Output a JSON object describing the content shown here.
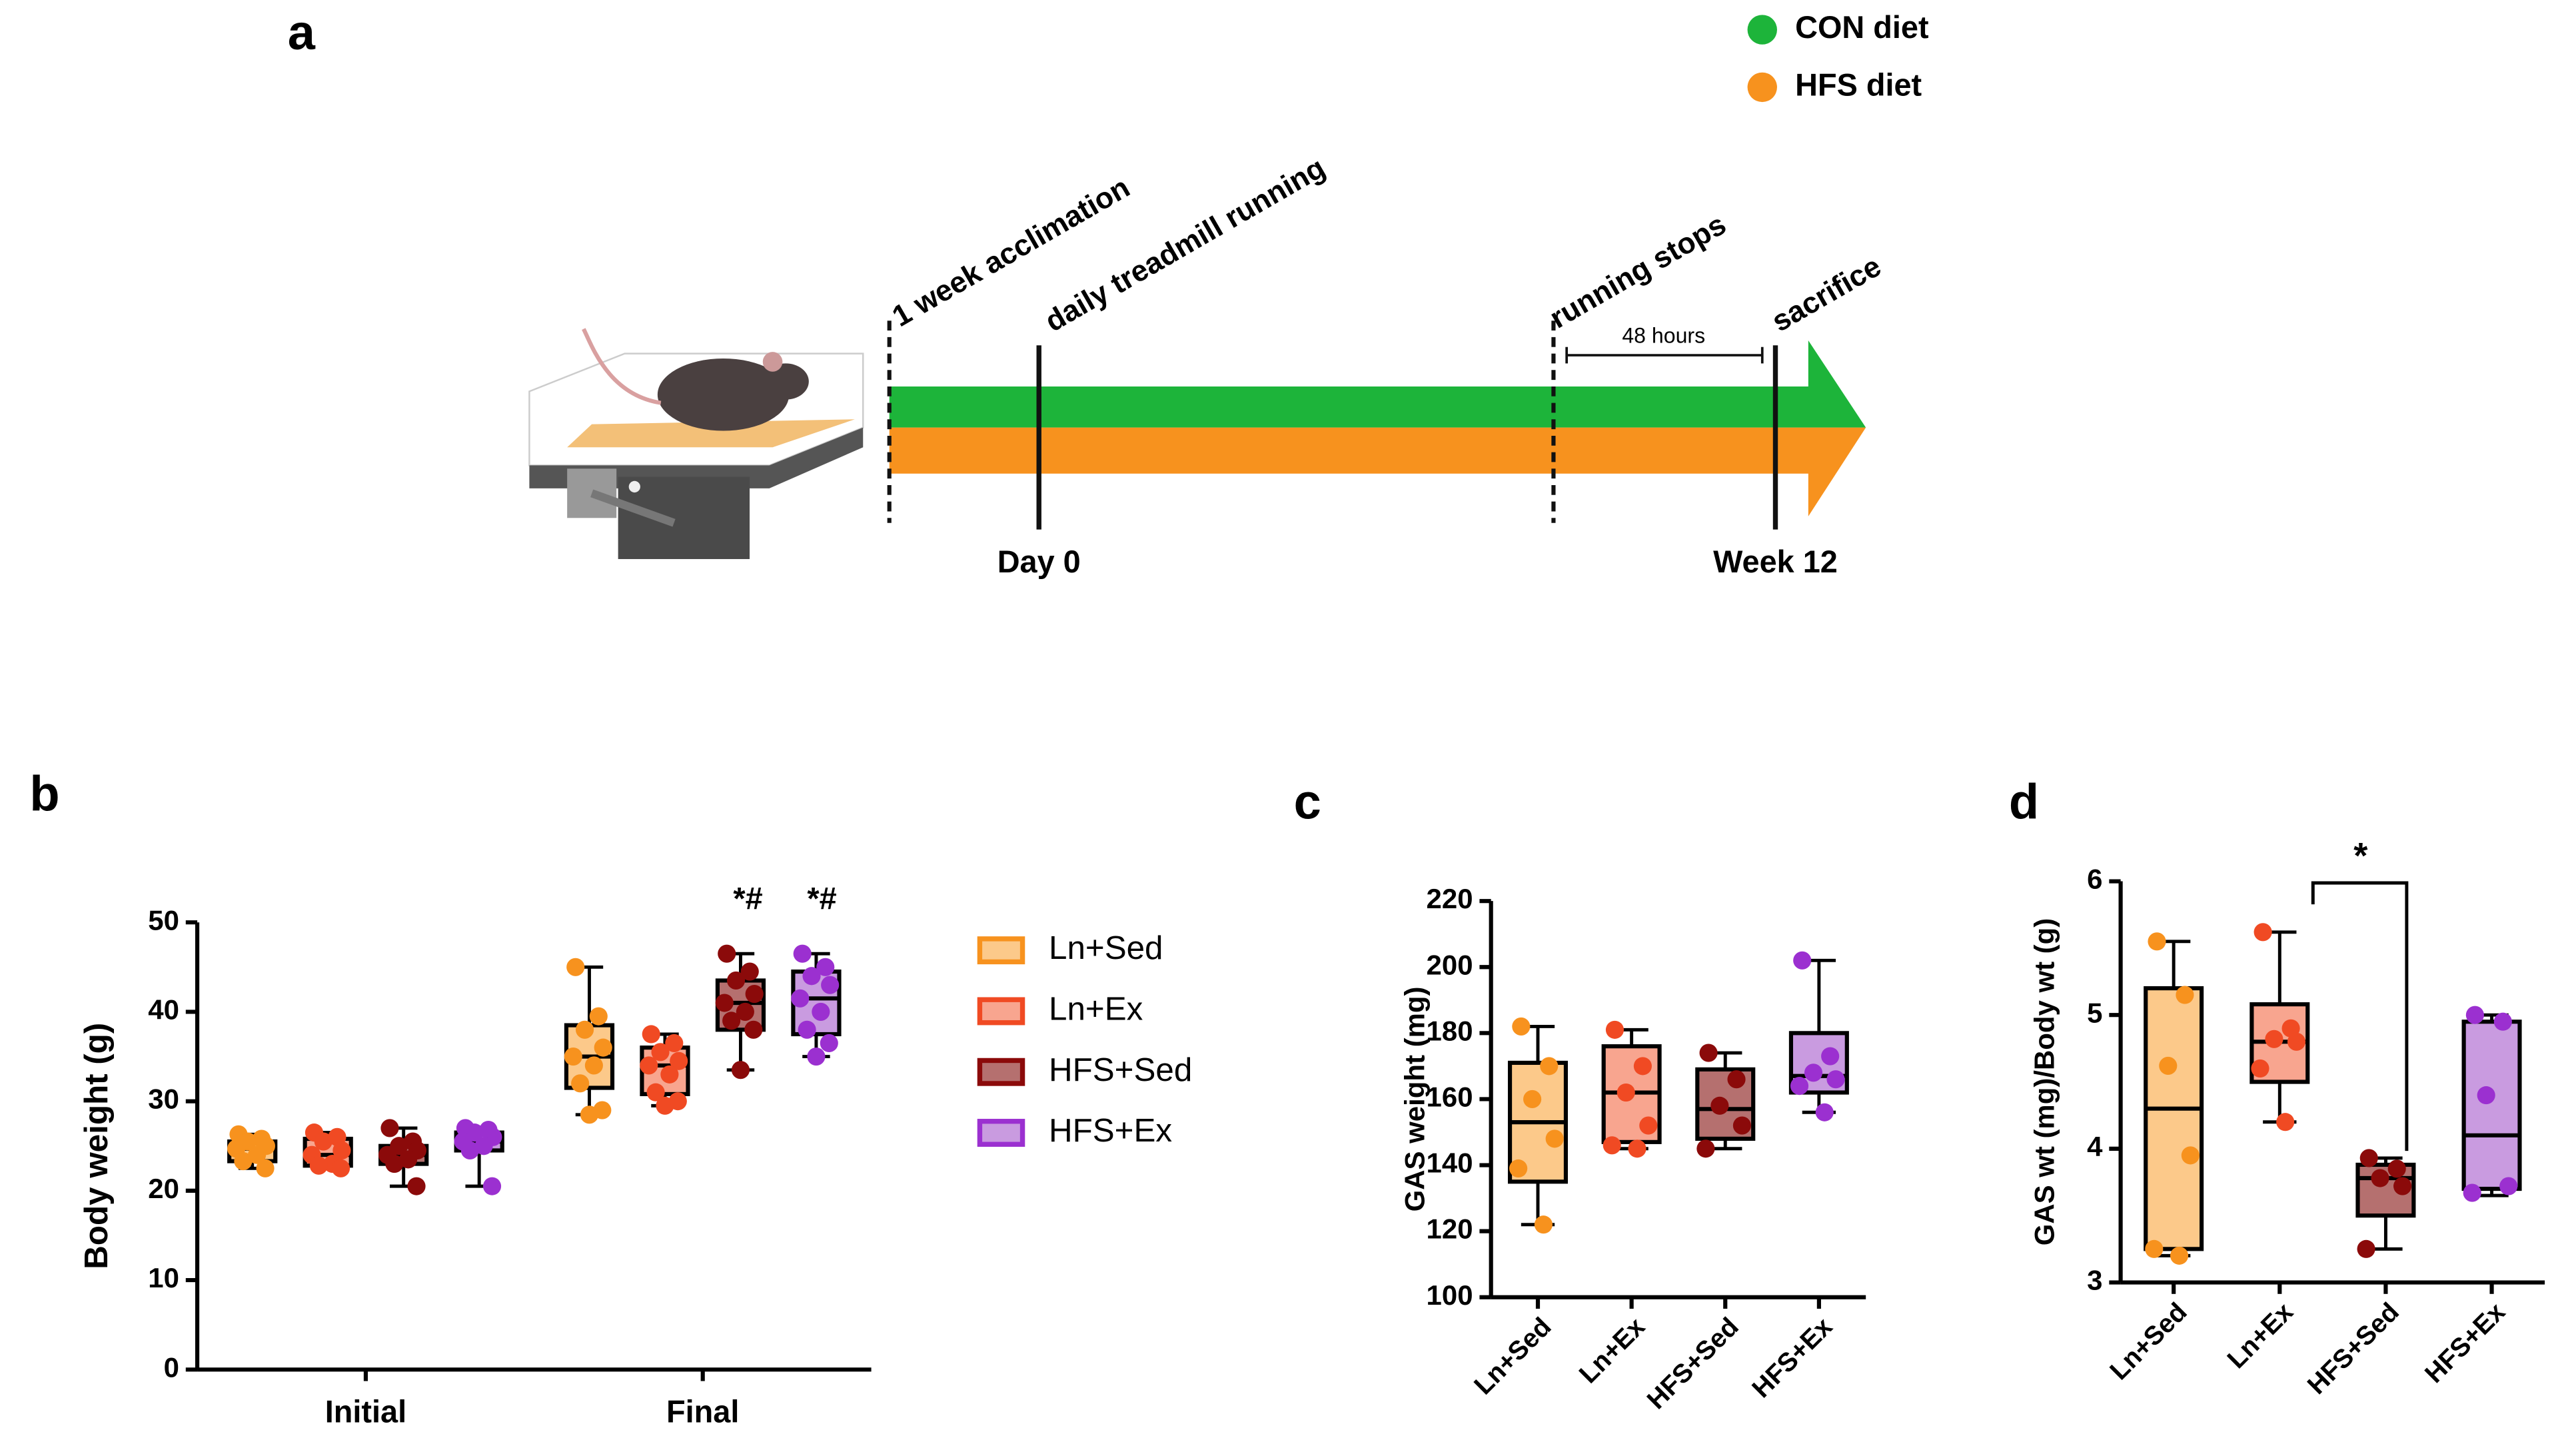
{
  "diagram": {
    "panel": "a",
    "legend": [
      {
        "label": "CON diet",
        "color": "#1db43a"
      },
      {
        "label": "HFS diet",
        "color": "#f7921e"
      }
    ],
    "labels": [
      "1 week acclimation",
      "daily treadmill running",
      "running stops",
      "sacrifice"
    ],
    "interval": "48 hours",
    "start": "Day 0",
    "end": "Week 12"
  },
  "chart_data": [
    {
      "type": "box",
      "panel": "b",
      "ylabel": "Body weight (g)",
      "categories": [
        "Initial",
        "Final"
      ],
      "ylim": [
        0,
        50
      ],
      "yticks": [
        0,
        10,
        20,
        30,
        40,
        50
      ],
      "annotations": [
        "*#",
        "*#"
      ],
      "series": [
        {
          "name": "Ln+Sed",
          "color": "#f7921e",
          "fill": "#fcc98a",
          "boxes": [
            {
              "min": 22.5,
              "q1": 23.3,
              "median": 24.7,
              "q3": 25.5,
              "max": 26.3,
              "points": [
                26.3,
                25.8,
                25.5,
                25,
                24.7,
                24,
                23.3,
                22.5
              ]
            },
            {
              "min": 28.5,
              "q1": 31.5,
              "median": 35,
              "q3": 38.5,
              "max": 45,
              "points": [
                45,
                39.5,
                38,
                36,
                35,
                34,
                32,
                29,
                28.5
              ]
            }
          ]
        },
        {
          "name": "Ln+Ex",
          "color": "#f04a23",
          "fill": "#f8a58f",
          "boxes": [
            {
              "min": 22.5,
              "q1": 22.8,
              "median": 24,
              "q3": 25.8,
              "max": 26.5,
              "points": [
                26.5,
                26,
                25.5,
                24.5,
                24,
                23,
                22.8,
                22.5
              ]
            },
            {
              "min": 29.5,
              "q1": 30.8,
              "median": 34,
              "q3": 36,
              "max": 37.5,
              "points": [
                37.5,
                36.5,
                35.5,
                34.5,
                34,
                33,
                31,
                30,
                29.5
              ]
            }
          ]
        },
        {
          "name": "HFS+Sed",
          "color": "#8b0a0a",
          "fill": "#b5706f",
          "boxes": [
            {
              "min": 20.5,
              "q1": 23,
              "median": 24,
              "q3": 25,
              "max": 27,
              "points": [
                27,
                25.5,
                25,
                24.5,
                24,
                23.5,
                23,
                20.5
              ]
            },
            {
              "min": 33.5,
              "q1": 38,
              "median": 41,
              "q3": 43.5,
              "max": 46.5,
              "points": [
                46.5,
                44.5,
                43.5,
                42,
                41,
                40,
                39,
                38,
                33.5
              ]
            }
          ]
        },
        {
          "name": "HFS+Ex",
          "color": "#9b30d0",
          "fill": "#c99be0",
          "boxes": [
            {
              "min": 20.5,
              "q1": 24.5,
              "median": 25.5,
              "q3": 26.5,
              "max": 27,
              "points": [
                27,
                26.8,
                26.5,
                26,
                25.5,
                25,
                24.5,
                20.5
              ]
            },
            {
              "min": 35,
              "q1": 37.5,
              "median": 41.5,
              "q3": 44.5,
              "max": 46.5,
              "points": [
                46.5,
                45,
                44,
                43,
                41.5,
                40,
                38,
                36.5,
                35
              ]
            }
          ]
        }
      ]
    },
    {
      "type": "box",
      "panel": "c",
      "ylabel": "GAS weight  (mg)",
      "categories": [
        "Ln+Sed",
        "Ln+Ex",
        "HFS+Sed",
        "HFS+Ex"
      ],
      "ylim": [
        100,
        220
      ],
      "yticks": [
        100,
        120,
        140,
        160,
        180,
        200,
        220
      ],
      "colors": [
        "#f7921e",
        "#f04a23",
        "#8b0a0a",
        "#9b30d0"
      ],
      "fills": [
        "#fcc98a",
        "#f8a58f",
        "#b5706f",
        "#c99be0"
      ],
      "boxes": [
        {
          "min": 122,
          "q1": 135,
          "median": 153,
          "q3": 171,
          "max": 182,
          "points": [
            182,
            170,
            160,
            148,
            139,
            122
          ]
        },
        {
          "min": 145,
          "q1": 147,
          "median": 162,
          "q3": 176,
          "max": 181,
          "points": [
            181,
            170,
            162,
            152,
            146,
            145
          ]
        },
        {
          "min": 145,
          "q1": 148,
          "median": 157,
          "q3": 169,
          "max": 174,
          "points": [
            174,
            166,
            158,
            152,
            145
          ]
        },
        {
          "min": 156,
          "q1": 162,
          "median": 167,
          "q3": 180,
          "max": 202,
          "points": [
            202,
            173,
            168,
            166,
            164,
            156
          ]
        }
      ]
    },
    {
      "type": "box",
      "panel": "d",
      "ylabel": "GAS wt (mg)/Body wt (g)",
      "categories": [
        "Ln+Sed",
        "Ln+Ex",
        "HFS+Sed",
        "HFS+Ex"
      ],
      "ylim": [
        3,
        6
      ],
      "yticks": [
        3,
        4,
        5,
        6
      ],
      "colors": [
        "#f7921e",
        "#f04a23",
        "#8b0a0a",
        "#9b30d0"
      ],
      "fills": [
        "#fcc98a",
        "#f8a58f",
        "#b5706f",
        "#c99be0"
      ],
      "annotations": [
        "*"
      ],
      "boxes": [
        {
          "min": 3.2,
          "q1": 3.25,
          "median": 4.3,
          "q3": 5.2,
          "max": 5.55,
          "points": [
            5.55,
            5.15,
            4.62,
            3.95,
            3.25,
            3.2
          ]
        },
        {
          "min": 4.2,
          "q1": 4.5,
          "median": 4.8,
          "q3": 5.08,
          "max": 5.62,
          "points": [
            5.62,
            4.9,
            4.82,
            4.8,
            4.6,
            4.2
          ]
        },
        {
          "min": 3.25,
          "q1": 3.5,
          "median": 3.78,
          "q3": 3.88,
          "max": 3.93,
          "points": [
            3.93,
            3.85,
            3.78,
            3.72,
            3.25
          ]
        },
        {
          "min": 3.65,
          "q1": 3.7,
          "median": 4.1,
          "q3": 4.95,
          "max": 5.0,
          "points": [
            5.0,
            4.95,
            4.4,
            3.72,
            3.67
          ]
        }
      ]
    }
  ]
}
